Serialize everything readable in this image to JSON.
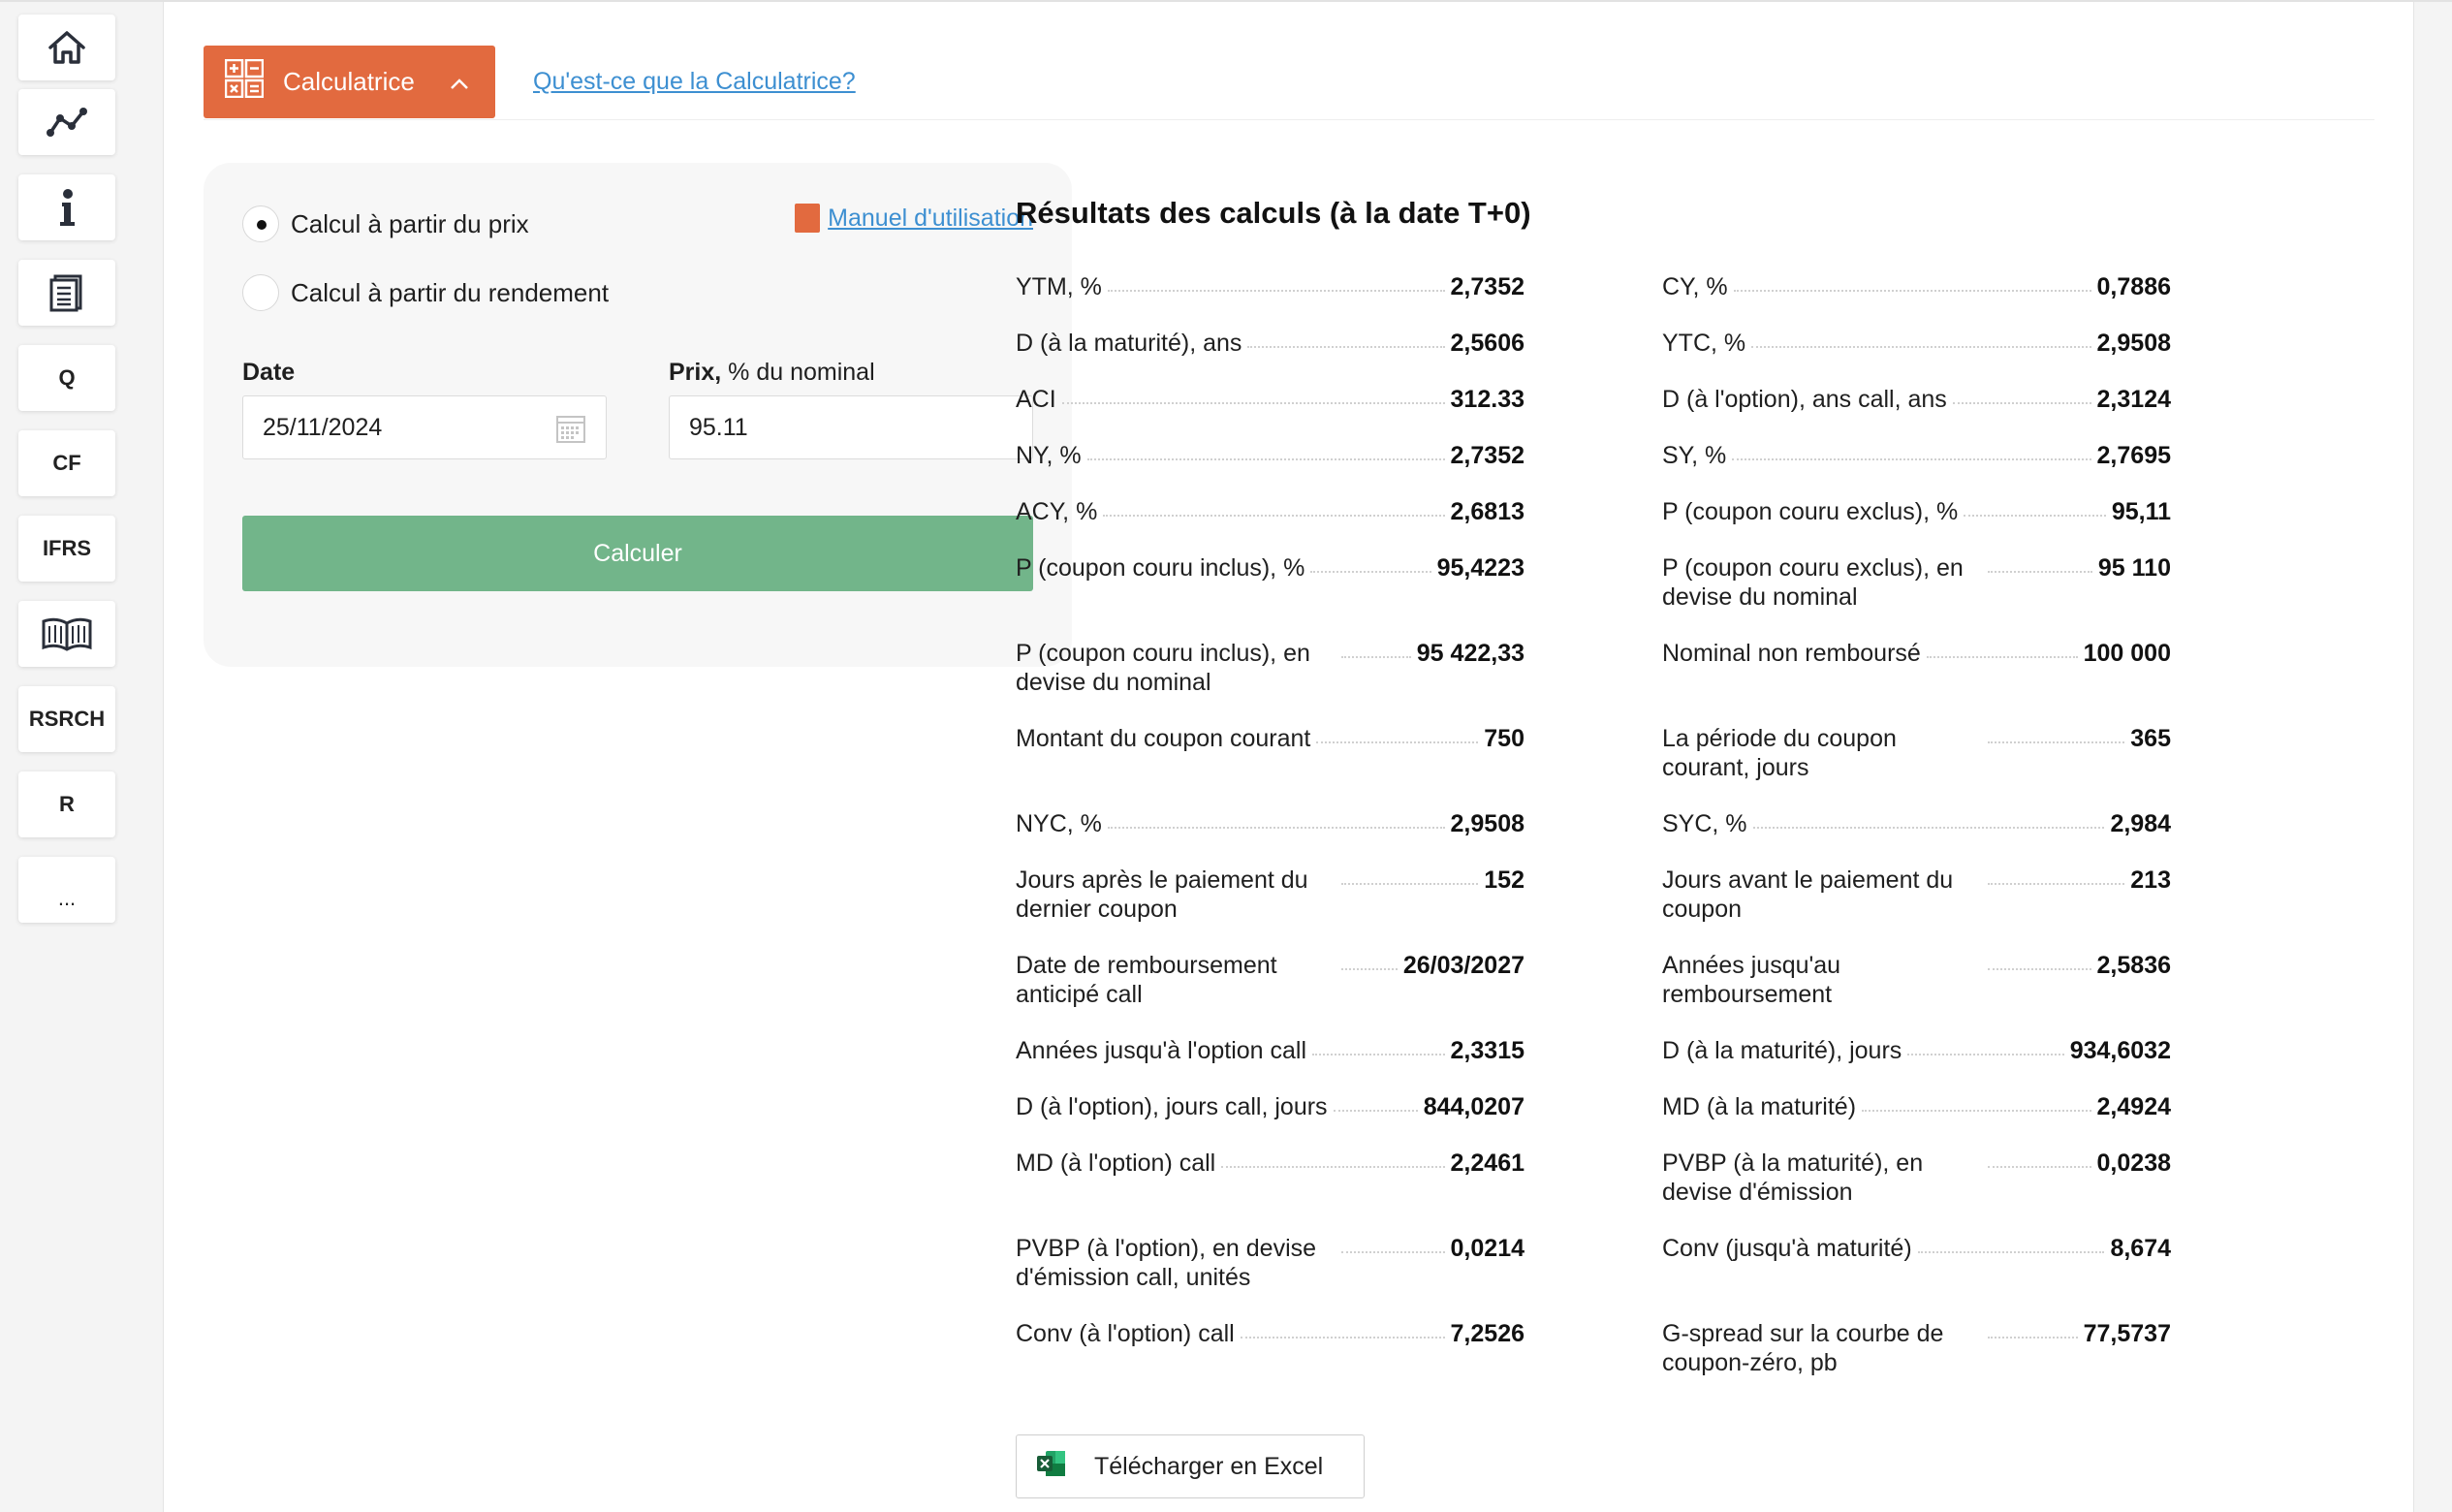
{
  "sidebar": {
    "items": [
      {
        "icon": "home-icon",
        "label": ""
      },
      {
        "icon": "chart-line-icon",
        "label": ""
      },
      {
        "icon": "info-icon",
        "label": ""
      },
      {
        "icon": "document-icon",
        "label": ""
      },
      {
        "icon": "",
        "label": "Q"
      },
      {
        "icon": "",
        "label": "CF"
      },
      {
        "icon": "",
        "label": "IFRS"
      },
      {
        "icon": "book-icon",
        "label": ""
      },
      {
        "icon": "",
        "label": "RSRCH"
      },
      {
        "icon": "",
        "label": "R"
      },
      {
        "icon": "",
        "label": "..."
      }
    ]
  },
  "header": {
    "calc_button": "Calculatrice",
    "help_link": "Qu'est-ce que la Calculatrice?"
  },
  "form": {
    "radio_price": "Calcul à partir du prix",
    "radio_yield": "Calcul à partir du rendement",
    "manual_link": "Manuel d'utilisation",
    "date_label": "Date",
    "date_value": "25/11/2024",
    "price_label_bold": "Prix,",
    "price_label_rest": " % du nominal",
    "price_value": "95.11",
    "submit": "Calculer"
  },
  "results": {
    "title": "Résultats des calculs (à la date T+0)",
    "left": [
      {
        "label": "YTM, %",
        "value": "2,7352"
      },
      {
        "label": "D (à la maturité), ans",
        "value": "2,5606"
      },
      {
        "label": "ACI",
        "value": "312.33"
      },
      {
        "label": "NY, %",
        "value": "2,7352"
      },
      {
        "label": "ACY, %",
        "value": "2,6813"
      },
      {
        "label": "P (coupon couru inclus), %",
        "value": "95,4223"
      },
      {
        "label": "P (coupon couru inclus), en devise du nominal",
        "value": "95 422,33"
      },
      {
        "label": "Montant du coupon courant",
        "value": "750"
      },
      {
        "label": "NYC, %",
        "value": "2,9508"
      },
      {
        "label": "Jours après le paiement du dernier coupon",
        "value": "152"
      },
      {
        "label": "Date de remboursement anticipé call",
        "value": "26/03/2027"
      },
      {
        "label": "Années jusqu'à l'option call",
        "value": "2,3315"
      },
      {
        "label": "D (à l'option), jours call, jours",
        "value": "844,0207"
      },
      {
        "label": "MD (à l'option) call",
        "value": "2,2461"
      },
      {
        "label": "PVBP (à l'option), en devise d'émission call, unités",
        "value": "0,0214"
      },
      {
        "label": "Conv (à l'option) call",
        "value": "7,2526"
      }
    ],
    "right": [
      {
        "label": "CY, %",
        "value": "0,7886"
      },
      {
        "label": "YTC, %",
        "value": "2,9508"
      },
      {
        "label": "D (à l'option), ans call, ans",
        "value": "2,3124"
      },
      {
        "label": "SY, %",
        "value": "2,7695"
      },
      {
        "label": "P (coupon couru exclus), %",
        "value": "95,11"
      },
      {
        "label": "P (coupon couru exclus), en devise du nominal",
        "value": "95 110"
      },
      {
        "label": "Nominal non remboursé",
        "value": "100 000"
      },
      {
        "label": "La période du coupon courant, jours",
        "value": "365"
      },
      {
        "label": "SYC, %",
        "value": "2,984"
      },
      {
        "label": "Jours avant le paiement du coupon",
        "value": "213"
      },
      {
        "label": "Années jusqu'au remboursement",
        "value": "2,5836"
      },
      {
        "label": "D (à la maturité), jours",
        "value": "934,6032"
      },
      {
        "label": "MD (à la maturité)",
        "value": "2,4924"
      },
      {
        "label": "PVBP (à la maturité), en devise d'émission",
        "value": "0,0238"
      },
      {
        "label": "Conv (jusqu'à maturité)",
        "value": "8,674"
      },
      {
        "label": "G-spread sur la courbe de coupon-zéro, pb",
        "value": "77,5737"
      }
    ],
    "excel_button": "Télécharger en Excel"
  },
  "colors": {
    "accent": "#e26a3f",
    "submit": "#72b58a",
    "link": "#3d8fd1"
  }
}
